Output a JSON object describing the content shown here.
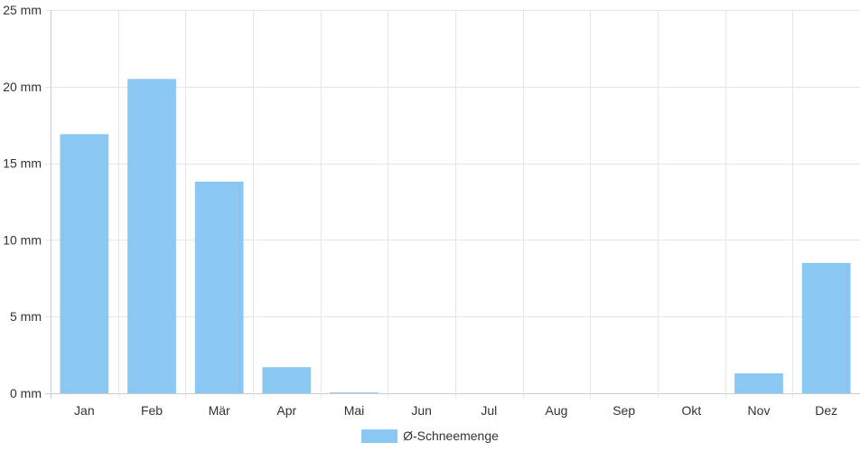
{
  "colors": {
    "bar": "#8bc7f3",
    "grid": "#e6e6e6",
    "axis": "#cccccc",
    "text": "#333333"
  },
  "chart_data": {
    "type": "bar",
    "title": "",
    "xlabel": "",
    "ylabel": "",
    "categories": [
      "Jan",
      "Feb",
      "Mär",
      "Apr",
      "Mai",
      "Jun",
      "Jul",
      "Aug",
      "Sep",
      "Okt",
      "Nov",
      "Dez"
    ],
    "series": [
      {
        "name": "Ø-Schneemenge",
        "values": [
          16.9,
          20.5,
          13.8,
          1.7,
          0.05,
          0,
          0,
          0,
          0,
          0,
          1.3,
          8.5
        ]
      }
    ],
    "ylim": [
      0,
      25
    ],
    "y_ticks": [
      0,
      5,
      10,
      15,
      20,
      25
    ],
    "y_tick_labels": [
      "0 mm",
      "5 mm",
      "10 mm",
      "15 mm",
      "20 mm",
      "25 mm"
    ],
    "grid": true,
    "legend_position": "bottom-center"
  }
}
